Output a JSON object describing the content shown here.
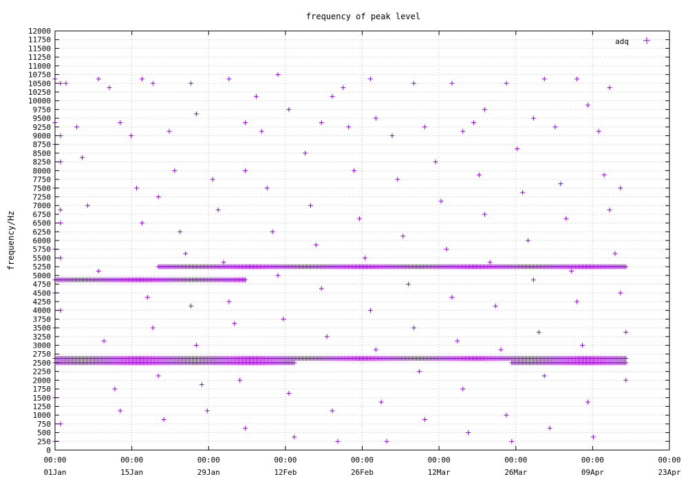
{
  "chart_data": {
    "type": "scatter",
    "title": "frequency of peak level",
    "xlabel": "",
    "ylabel": "frequency/Hz",
    "ylim": [
      0,
      12000
    ],
    "xlim": [
      "2024-01-01",
      "2024-04-23"
    ],
    "y_ticks": [
      0,
      250,
      500,
      750,
      1000,
      1250,
      1500,
      1750,
      2000,
      2250,
      2500,
      2750,
      3000,
      3250,
      3500,
      3750,
      4000,
      4250,
      4500,
      4750,
      5000,
      5250,
      5500,
      5750,
      6000,
      6250,
      6500,
      6750,
      7000,
      7250,
      7500,
      7750,
      8000,
      8250,
      8500,
      8750,
      9000,
      9250,
      9500,
      9750,
      10000,
      10250,
      10500,
      10750,
      11000,
      11250,
      11500,
      11750,
      12000
    ],
    "x_ticks": [
      {
        "time": "00:00",
        "date": "01Jan"
      },
      {
        "time": "00:00",
        "date": "15Jan"
      },
      {
        "time": "00:00",
        "date": "29Jan"
      },
      {
        "time": "00:00",
        "date": "12Feb"
      },
      {
        "time": "00:00",
        "date": "26Feb"
      },
      {
        "time": "00:00",
        "date": "12Mar"
      },
      {
        "time": "00:00",
        "date": "26Mar"
      },
      {
        "time": "00:00",
        "date": "09Apr"
      },
      {
        "time": "00:00",
        "date": "23Apr"
      }
    ],
    "grid": true,
    "legend": {
      "position": "top-right",
      "entries": [
        {
          "name": "adq",
          "color": "#9400d3",
          "marker": "+"
        }
      ]
    },
    "series": [
      {
        "name": "adq",
        "color": "#9400d3",
        "x_range": [
          "2024-01-01",
          "2024-04-15"
        ],
        "dense_bands": [
          {
            "y": 2625,
            "x_from": "2024-01-01",
            "x_to": "2024-04-15"
          },
          {
            "y": 2500,
            "x_from": "2024-01-01",
            "x_to": "2024-02-14"
          },
          {
            "y": 2500,
            "x_from": "2024-03-25",
            "x_to": "2024-04-15"
          },
          {
            "y": 4875,
            "x_from": "2024-01-01",
            "x_to": "2024-02-05"
          },
          {
            "y": 5250,
            "x_from": "2024-01-20",
            "x_to": "2024-04-15"
          }
        ],
        "points": [
          [
            "2024-01-01",
            10625
          ],
          [
            "2024-01-01",
            9375
          ],
          [
            "2024-01-02",
            10500
          ],
          [
            "2024-01-02",
            9000
          ],
          [
            "2024-01-01",
            8750
          ],
          [
            "2024-01-02",
            8250
          ],
          [
            "2024-01-01",
            7500
          ],
          [
            "2024-01-02",
            6875
          ],
          [
            "2024-01-02",
            6500
          ],
          [
            "2024-01-01",
            5750
          ],
          [
            "2024-01-02",
            5500
          ],
          [
            "2024-01-01",
            4500
          ],
          [
            "2024-01-02",
            4000
          ],
          [
            "2024-01-01",
            3500
          ],
          [
            "2024-01-01",
            1500
          ],
          [
            "2024-01-02",
            750
          ],
          [
            "2024-01-01",
            250
          ],
          [
            "2024-01-03",
            10500
          ],
          [
            "2024-01-05",
            9250
          ],
          [
            "2024-01-06",
            8375
          ],
          [
            "2024-01-07",
            7000
          ],
          [
            "2024-01-09",
            5125
          ],
          [
            "2024-01-10",
            3125
          ],
          [
            "2024-01-12",
            1750
          ],
          [
            "2024-01-13",
            1125
          ],
          [
            "2024-01-09",
            10625
          ],
          [
            "2024-01-11",
            10375
          ],
          [
            "2024-01-13",
            9375
          ],
          [
            "2024-01-15",
            9000
          ],
          [
            "2024-01-16",
            7500
          ],
          [
            "2024-01-17",
            6500
          ],
          [
            "2024-01-18",
            4375
          ],
          [
            "2024-01-19",
            3500
          ],
          [
            "2024-01-20",
            2125
          ],
          [
            "2024-01-21",
            875
          ],
          [
            "2024-01-17",
            10625
          ],
          [
            "2024-01-19",
            10500
          ],
          [
            "2024-01-20",
            7250
          ],
          [
            "2024-01-22",
            9125
          ],
          [
            "2024-01-23",
            8000
          ],
          [
            "2024-01-24",
            6250
          ],
          [
            "2024-01-25",
            5625
          ],
          [
            "2024-01-26",
            4125
          ],
          [
            "2024-01-27",
            3000
          ],
          [
            "2024-01-28",
            1875
          ],
          [
            "2024-01-29",
            1125
          ],
          [
            "2024-01-27",
            9625
          ],
          [
            "2024-01-26",
            10500
          ],
          [
            "2024-01-30",
            7750
          ],
          [
            "2024-01-31",
            6875
          ],
          [
            "2024-02-01",
            5375
          ],
          [
            "2024-02-02",
            4250
          ],
          [
            "2024-02-03",
            3625
          ],
          [
            "2024-02-04",
            2000
          ],
          [
            "2024-02-05",
            625
          ],
          [
            "2024-02-02",
            10625
          ],
          [
            "2024-02-05",
            9375
          ],
          [
            "2024-02-05",
            8000
          ],
          [
            "2024-02-07",
            10125
          ],
          [
            "2024-02-08",
            9125
          ],
          [
            "2024-02-09",
            7500
          ],
          [
            "2024-02-10",
            6250
          ],
          [
            "2024-02-11",
            5000
          ],
          [
            "2024-02-12",
            3750
          ],
          [
            "2024-02-13",
            1625
          ],
          [
            "2024-02-14",
            375
          ],
          [
            "2024-02-11",
            10750
          ],
          [
            "2024-02-13",
            9750
          ],
          [
            "2024-02-16",
            8500
          ],
          [
            "2024-02-17",
            7000
          ],
          [
            "2024-02-18",
            5875
          ],
          [
            "2024-02-19",
            4625
          ],
          [
            "2024-02-20",
            3250
          ],
          [
            "2024-02-21",
            1125
          ],
          [
            "2024-02-22",
            250
          ],
          [
            "2024-02-19",
            9375
          ],
          [
            "2024-02-21",
            10125
          ],
          [
            "2024-02-23",
            10375
          ],
          [
            "2024-02-24",
            9250
          ],
          [
            "2024-02-25",
            8000
          ],
          [
            "2024-02-26",
            6625
          ],
          [
            "2024-02-27",
            5500
          ],
          [
            "2024-02-28",
            4000
          ],
          [
            "2024-02-29",
            2875
          ],
          [
            "2024-03-01",
            1375
          ],
          [
            "2024-03-02",
            250
          ],
          [
            "2024-02-29",
            9500
          ],
          [
            "2024-02-28",
            10625
          ],
          [
            "2024-03-03",
            9000
          ],
          [
            "2024-03-04",
            7750
          ],
          [
            "2024-03-05",
            6125
          ],
          [
            "2024-03-06",
            4750
          ],
          [
            "2024-03-07",
            3500
          ],
          [
            "2024-03-08",
            2250
          ],
          [
            "2024-03-09",
            875
          ],
          [
            "2024-03-07",
            10500
          ],
          [
            "2024-03-09",
            9250
          ],
          [
            "2024-03-11",
            8250
          ],
          [
            "2024-03-12",
            7125
          ],
          [
            "2024-03-13",
            5750
          ],
          [
            "2024-03-14",
            4375
          ],
          [
            "2024-03-15",
            3125
          ],
          [
            "2024-03-16",
            1750
          ],
          [
            "2024-03-17",
            500
          ],
          [
            "2024-03-14",
            10500
          ],
          [
            "2024-03-16",
            9125
          ],
          [
            "2024-03-18",
            9375
          ],
          [
            "2024-03-19",
            7875
          ],
          [
            "2024-03-20",
            6750
          ],
          [
            "2024-03-21",
            5375
          ],
          [
            "2024-03-22",
            4125
          ],
          [
            "2024-03-23",
            2875
          ],
          [
            "2024-03-24",
            1000
          ],
          [
            "2024-03-25",
            250
          ],
          [
            "2024-03-20",
            9750
          ],
          [
            "2024-03-24",
            10500
          ],
          [
            "2024-03-26",
            8625
          ],
          [
            "2024-03-27",
            7375
          ],
          [
            "2024-03-28",
            6000
          ],
          [
            "2024-03-29",
            4875
          ],
          [
            "2024-03-30",
            3375
          ],
          [
            "2024-03-31",
            2125
          ],
          [
            "2024-04-01",
            625
          ],
          [
            "2024-03-31",
            10625
          ],
          [
            "2024-03-29",
            9500
          ],
          [
            "2024-04-02",
            9250
          ],
          [
            "2024-04-03",
            7625
          ],
          [
            "2024-04-04",
            6625
          ],
          [
            "2024-04-05",
            5125
          ],
          [
            "2024-04-06",
            4250
          ],
          [
            "2024-04-07",
            3000
          ],
          [
            "2024-04-08",
            1375
          ],
          [
            "2024-04-09",
            375
          ],
          [
            "2024-04-06",
            10625
          ],
          [
            "2024-04-08",
            9875
          ],
          [
            "2024-04-10",
            9125
          ],
          [
            "2024-04-11",
            7875
          ],
          [
            "2024-04-12",
            6875
          ],
          [
            "2024-04-13",
            5625
          ],
          [
            "2024-04-14",
            4500
          ],
          [
            "2024-04-15",
            3375
          ],
          [
            "2024-04-15",
            2000
          ],
          [
            "2024-04-14",
            7500
          ],
          [
            "2024-04-12",
            10375
          ]
        ]
      }
    ]
  }
}
